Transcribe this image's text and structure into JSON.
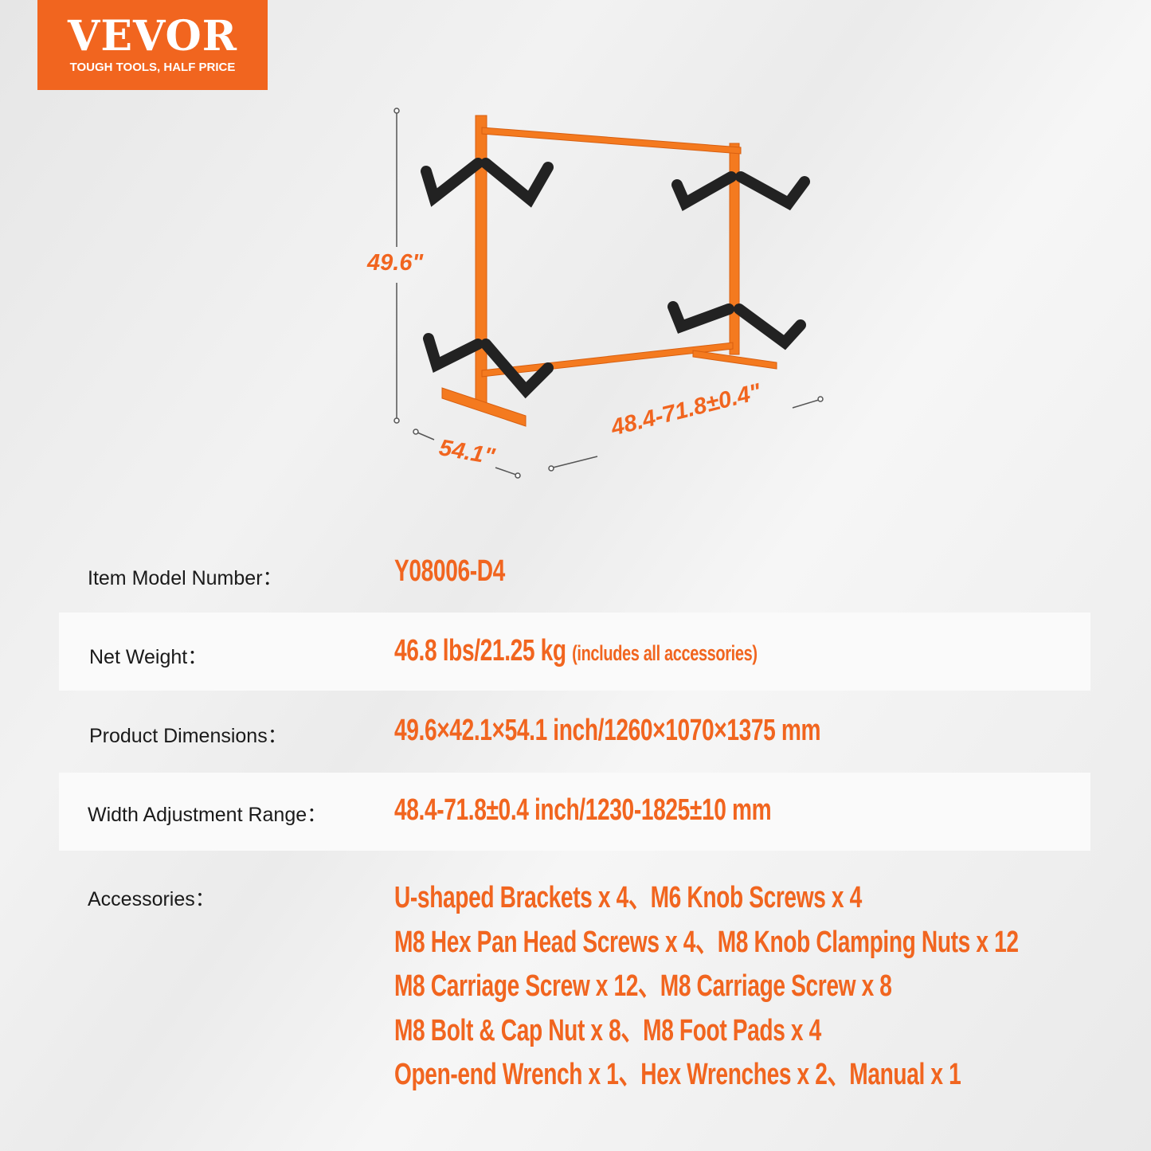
{
  "logo": {
    "brand": "VEVOR",
    "tagline": "TOUGH TOOLS, HALF PRICE",
    "color": "#f1651f"
  },
  "dimensions": {
    "height": "49.6\"",
    "depth": "54.1\"",
    "width": "48.4-71.8±0.4\""
  },
  "specs": [
    {
      "label": "Item Model Number：",
      "value": "Y08006-D4",
      "note": ""
    },
    {
      "label": "Net Weight：",
      "value": "46.8 lbs/21.25 kg ",
      "note": "(includes all accessories)"
    },
    {
      "label": "Product Dimensions：",
      "value": "49.6×42.1×54.1 inch/1260×1070×1375 mm",
      "note": ""
    },
    {
      "label": "Width Adjustment Range：",
      "value": "48.4-71.8±0.4 inch/1230-1825±10 mm",
      "note": ""
    }
  ],
  "accessories": {
    "label": "Accessories：",
    "lines": [
      "U-shaped Brackets x 4、M6 Knob Screws x 4",
      "M8 Hex Pan Head Screws x 4、M8 Knob Clamping Nuts x 12",
      "M8 Carriage Screw x 12、M8 Carriage Screw x 8",
      "M8 Bolt & Cap Nut x 8、M8 Foot Pads x 4",
      "Open-end Wrench x 1、Hex Wrenches x 2、Manual x 1"
    ]
  }
}
